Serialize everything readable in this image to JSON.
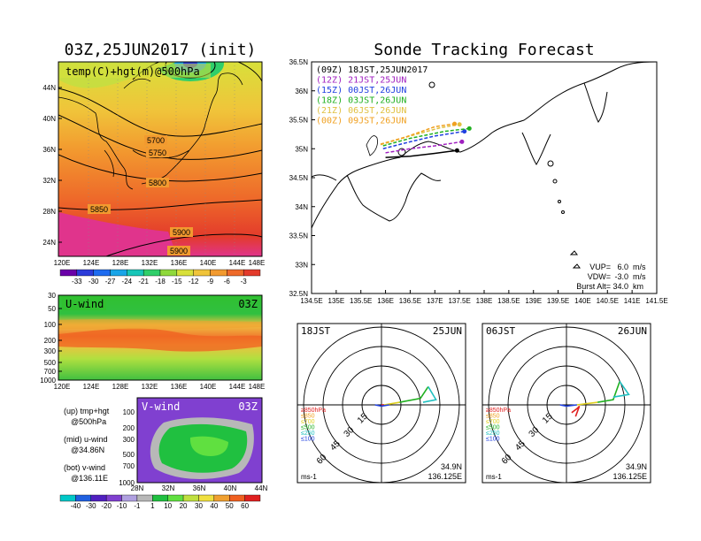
{
  "left": {
    "title": "03Z,25JUN2017 (init)",
    "map": {
      "subtitle": "temp(C)+hgt(m)@500hPa",
      "lat_ticks": [
        "44N",
        "40N",
        "36N",
        "32N",
        "28N",
        "24N"
      ],
      "lon_ticks": [
        "120E",
        "124E",
        "128E",
        "132E",
        "136E",
        "140E",
        "144E",
        "148E"
      ],
      "contour_labels": [
        "5700",
        "5750",
        "5800",
        "5850",
        "5900",
        "5900"
      ]
    },
    "temp_scale": {
      "labels": [
        "-33",
        "-30",
        "-27",
        "-24",
        "-21",
        "-18",
        "-15",
        "-12",
        "-9",
        "-6",
        "-3"
      ],
      "colors": [
        "#6a00a8",
        "#2b3bd9",
        "#1e6cf0",
        "#19a5e8",
        "#17c6b8",
        "#2fcf6a",
        "#8fd93b",
        "#d8e03a",
        "#f0c43a",
        "#f29a2f",
        "#ee6a2a",
        "#e33b2b"
      ]
    },
    "uwind": {
      "label": "U-wind",
      "time": "03Z",
      "p_ticks": [
        "30",
        "50",
        "100",
        "200",
        "300",
        "500",
        "700",
        "1000"
      ],
      "lon_ticks": [
        "120E",
        "124E",
        "128E",
        "132E",
        "136E",
        "140E",
        "144E",
        "148E"
      ]
    },
    "vwind": {
      "label": "V-wind",
      "time": "03Z",
      "p_ticks": [
        "100",
        "200",
        "300",
        "500",
        "700",
        "1000"
      ],
      "lat_ticks": [
        "28N",
        "32N",
        "36N",
        "40N",
        "44N"
      ]
    },
    "legend_notes": [
      {
        "a": "(up) tmp+hgt",
        "b": "@500hPa"
      },
      {
        "a": "(mid) u-wind",
        "b": "@34.86N"
      },
      {
        "a": "(bot) v-wind",
        "b": "@136.11E"
      }
    ],
    "wind_scale": {
      "labels": [
        "-40",
        "-30",
        "-20",
        "-10",
        "-1",
        "1",
        "10",
        "20",
        "30",
        "40",
        "50",
        "60"
      ],
      "colors": [
        "#00c8c8",
        "#2060e0",
        "#5020c0",
        "#8040d0",
        "#b0a0e0",
        "#b8b8b8",
        "#20c040",
        "#60e040",
        "#c0e040",
        "#f0e040",
        "#f0a030",
        "#f06020",
        "#e02020"
      ]
    }
  },
  "right": {
    "title": "Sonde Tracking Forecast",
    "track_map": {
      "lat_ticks": [
        "36.5N",
        "36N",
        "35.5N",
        "35N",
        "34.5N",
        "34N",
        "33.5N",
        "33N",
        "32.5N"
      ],
      "lon_ticks": [
        "134.5E",
        "135E",
        "135.5E",
        "136E",
        "136.5E",
        "137E",
        "137.5E",
        "138E",
        "138.5E",
        "139E",
        "139.5E",
        "140E",
        "140.5E",
        "141E",
        "141.5E"
      ],
      "legend": [
        {
          "text": "(09Z)  18JST,25JUN2017",
          "color": "#000000"
        },
        {
          "text": "(12Z)  21JST,25JUN",
          "color": "#a020c0"
        },
        {
          "text": "(15Z)  00JST,26JUN",
          "color": "#2040e0"
        },
        {
          "text": "(18Z)  03JST,26JUN",
          "color": "#20b020"
        },
        {
          "text": "(21Z)  06JST,26JUN",
          "color": "#e0c040"
        },
        {
          "text": "(00Z)  09JST,26JUN",
          "color": "#f0a020"
        }
      ],
      "params": [
        {
          "label": "VUP=",
          "value": "6.0",
          "unit": "m/s"
        },
        {
          "label": "VDW=",
          "value": "-3.0",
          "unit": "m/s"
        },
        {
          "label": "Burst Alt=",
          "value": "34.0",
          "unit": "km"
        }
      ]
    },
    "hodo_left": {
      "time_label": "18JST",
      "date_label": "25JUN",
      "ring_labels": [
        "15",
        "30",
        "45",
        "60"
      ],
      "levels": [
        {
          "text": "≥850hPa",
          "color": "#e02020"
        },
        {
          "text": "≤850",
          "color": "#f0a020"
        },
        {
          "text": "≤700",
          "color": "#e0d020"
        },
        {
          "text": "≤500",
          "color": "#20b020"
        },
        {
          "text": "≤250",
          "color": "#20c0c0"
        },
        {
          "text": "≤100",
          "color": "#2040e0"
        }
      ],
      "unit": "ms-1",
      "lat": "34.9N",
      "lon": "136.125E"
    },
    "hodo_right": {
      "time_label": "06JST",
      "date_label": "26JUN",
      "ring_labels": [
        "15",
        "30",
        "45",
        "60"
      ],
      "levels": [
        {
          "text": "≥850hPa",
          "color": "#e02020"
        },
        {
          "text": "≤850",
          "color": "#f0a020"
        },
        {
          "text": "≤700",
          "color": "#e0d020"
        },
        {
          "text": "≤500",
          "color": "#20b020"
        },
        {
          "text": "≤250",
          "color": "#20c0c0"
        },
        {
          "text": "≤100",
          "color": "#2040e0"
        }
      ],
      "unit": "ms-1",
      "lat": "34.9N",
      "lon": "136.125E"
    }
  },
  "chart_data": [
    {
      "type": "heatmap",
      "title": "03Z,25JUN2017 (init)",
      "subtitle": "temp(C)+hgt(m)@500hPa",
      "xlim": [
        "120E",
        "150E"
      ],
      "ylim": [
        "22N",
        "47N"
      ],
      "contours": [
        5700,
        5750,
        5800,
        5850,
        5900
      ]
    },
    {
      "type": "heatmap",
      "title": "U-wind 03Z",
      "x": [
        "120E",
        "124E",
        "128E",
        "132E",
        "136E",
        "140E",
        "144E",
        "148E"
      ],
      "y": [
        30,
        50,
        100,
        200,
        300,
        500,
        700,
        1000
      ]
    },
    {
      "type": "heatmap",
      "title": "V-wind 03Z",
      "x": [
        "28N",
        "32N",
        "36N",
        "40N",
        "44N"
      ],
      "y": [
        100,
        200,
        300,
        500,
        700,
        1000
      ]
    },
    {
      "type": "line",
      "title": "Sonde Tracking Forecast",
      "xlim": [
        134.5,
        141.5
      ],
      "ylim": [
        32.5,
        36.5
      ],
      "series": [
        {
          "name": "(09Z) 18JST,25JUN2017",
          "x": [
            136.0,
            136.5,
            137.0,
            137.45
          ],
          "y": [
            34.85,
            34.87,
            34.92,
            34.97
          ]
        },
        {
          "name": "(12Z) 21JST,25JUN",
          "x": [
            136.0,
            136.5,
            137.0,
            137.55
          ],
          "y": [
            34.93,
            35.0,
            35.05,
            35.12
          ]
        },
        {
          "name": "(15Z) 00JST,26JUN",
          "x": [
            135.95,
            136.5,
            137.0,
            137.6
          ],
          "y": [
            35.0,
            35.12,
            35.22,
            35.3
          ]
        },
        {
          "name": "(18Z) 03JST,26JUN",
          "x": [
            135.95,
            136.5,
            137.2,
            137.7
          ],
          "y": [
            35.05,
            35.18,
            35.3,
            35.35
          ]
        },
        {
          "name": "(21Z) 06JST,26JUN",
          "x": [
            135.9,
            136.5,
            137.1,
            137.5
          ],
          "y": [
            35.07,
            35.22,
            35.36,
            35.42
          ]
        },
        {
          "name": "(00Z) 09JST,26JUN",
          "x": [
            135.9,
            136.4,
            137.0,
            137.4
          ],
          "y": [
            35.08,
            35.2,
            35.38,
            35.43
          ]
        }
      ]
    },
    {
      "type": "line",
      "title": "Hodograph 18JST 25JUN",
      "series": [
        {
          "name": "≥850hPa",
          "u": [
            0,
            2
          ],
          "v": [
            0,
            0
          ]
        },
        {
          "name": "≤700",
          "u": [
            2,
            8,
            14
          ],
          "v": [
            0,
            1,
            2
          ]
        },
        {
          "name": "≤500",
          "u": [
            14,
            30,
            36
          ],
          "v": [
            2,
            5,
            14
          ]
        },
        {
          "name": "≤250",
          "u": [
            36,
            42,
            32
          ],
          "v": [
            14,
            4,
            2
          ]
        },
        {
          "name": "≤100",
          "u": [
            -5,
            0,
            6
          ],
          "v": [
            0,
            -1,
            0
          ]
        }
      ]
    },
    {
      "type": "line",
      "title": "Hodograph 06JST 26JUN",
      "series": [
        {
          "name": "≥850hPa",
          "u": [
            4,
            8,
            10,
            7
          ],
          "v": [
            -6,
            -3,
            -1,
            -9
          ]
        },
        {
          "name": "≤700",
          "u": [
            8,
            16,
            24
          ],
          "v": [
            0,
            1,
            2
          ]
        },
        {
          "name": "≤500",
          "u": [
            24,
            36,
            41
          ],
          "v": [
            2,
            4,
            18
          ]
        },
        {
          "name": "≤250",
          "u": [
            41,
            48,
            36
          ],
          "v": [
            18,
            8,
            6
          ]
        },
        {
          "name": "≤100",
          "u": [
            -5,
            0,
            8
          ],
          "v": [
            0,
            -1,
            0
          ]
        }
      ]
    }
  ]
}
